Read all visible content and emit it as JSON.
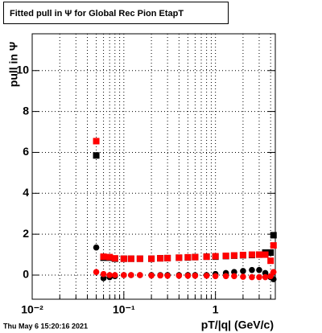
{
  "chart_data": {
    "type": "scatter",
    "title": "Fitted pull in  Ψ  for Global Rec Pion EtapT",
    "y_label": "pull in  Ψ",
    "x_label": "pT/|q| (GeV/c)",
    "footer": "Thu May  6 15:20:16 2021",
    "x_log": true,
    "grid": true,
    "xlim": [
      0.01,
      4.5
    ],
    "ylim": [
      -1.18,
      11.8
    ],
    "xticks": [
      {
        "value": 0.01,
        "label": "10⁻²"
      },
      {
        "value": 0.1,
        "label": "10⁻¹"
      },
      1
    ],
    "xminorticks": [
      0.02,
      0.03,
      0.04,
      0.05,
      0.06,
      0.07,
      0.08,
      0.09,
      0.2,
      0.3,
      0.4,
      0.5,
      0.6,
      0.7,
      0.8,
      0.9,
      2,
      3,
      4
    ],
    "yticks": [
      0,
      2,
      4,
      6,
      8,
      10
    ],
    "x": [
      0.05,
      0.06,
      0.07,
      0.08,
      0.1,
      0.12,
      0.15,
      0.2,
      0.25,
      0.3,
      0.4,
      0.5,
      0.6,
      0.8,
      1.0,
      1.3,
      1.6,
      2.0,
      2.5,
      3.0,
      3.5,
      4.0,
      4.3
    ],
    "series": [
      {
        "color": "#000000",
        "marker": "square",
        "values": [
          5.85,
          0.85,
          0.85,
          0.8,
          0.8,
          0.8,
          0.8,
          0.8,
          0.82,
          0.83,
          0.85,
          0.86,
          0.88,
          0.9,
          0.9,
          0.93,
          0.95,
          0.97,
          0.98,
          1.0,
          1.1,
          1.1,
          1.95
        ]
      },
      {
        "color": "#000000",
        "marker": "circle",
        "values": [
          1.35,
          -0.15,
          -0.1,
          -0.05,
          0.0,
          0.0,
          0.0,
          0.0,
          0.0,
          0.0,
          0.0,
          0.0,
          0.0,
          0.0,
          0.05,
          0.1,
          0.15,
          0.2,
          0.25,
          0.25,
          0.1,
          -0.1,
          -0.2
        ]
      },
      {
        "color": "#ff0000",
        "marker": "square",
        "values": [
          6.55,
          0.9,
          0.88,
          0.82,
          0.8,
          0.8,
          0.8,
          0.8,
          0.82,
          0.83,
          0.85,
          0.87,
          0.88,
          0.9,
          0.92,
          0.94,
          0.96,
          0.98,
          1.0,
          1.0,
          1.0,
          0.7,
          1.45
        ]
      },
      {
        "color": "#ff0000",
        "marker": "circle",
        "values": [
          0.15,
          0.05,
          0.0,
          0.0,
          0.0,
          0.0,
          0.0,
          -0.02,
          -0.02,
          -0.03,
          -0.03,
          -0.03,
          -0.03,
          -0.03,
          -0.05,
          -0.05,
          -0.05,
          -0.08,
          -0.1,
          -0.1,
          -0.1,
          -0.05,
          0.15
        ]
      }
    ]
  }
}
